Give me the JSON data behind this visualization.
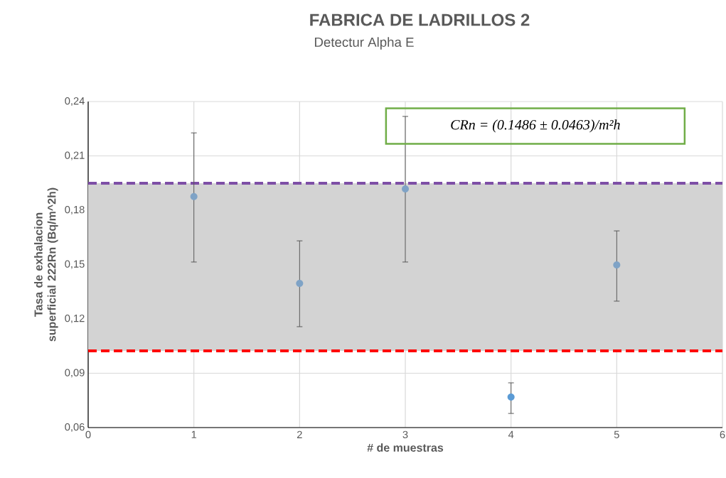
{
  "chart_data": {
    "type": "scatter",
    "title": "FABRICA DE LADRILLOS 2",
    "subtitle": "Detectur Alpha E",
    "xlabel": "# de muestras",
    "ylabel": "Tasa de exhalacion superficial 222Rn (Bq/m^2h)",
    "x": [
      1,
      2,
      3,
      4,
      5
    ],
    "values": [
      0.1875,
      0.1396,
      0.1918,
      0.0769,
      0.1498
    ],
    "colors": [
      "#7fa3c6",
      "#7fa3c6",
      "#7fa3c6",
      "#5b9bd5",
      "#7fa3c6"
    ],
    "errors": [
      [
        0.1514,
        0.2227
      ],
      [
        0.1157,
        0.1631
      ],
      [
        0.1514,
        0.2318
      ],
      [
        0.0678,
        0.0847
      ],
      [
        0.1298,
        0.1686
      ]
    ],
    "xlim": [
      0,
      6
    ],
    "xticks": [
      0,
      1,
      2,
      3,
      4,
      5,
      6
    ],
    "ylim": [
      0.06,
      0.24
    ],
    "yticks": [
      {
        "value": 0.06,
        "label": "0,06"
      },
      {
        "value": 0.09,
        "label": "0,09"
      },
      {
        "value": 0.12,
        "label": "0,12"
      },
      {
        "value": 0.15,
        "label": "0,15"
      },
      {
        "value": 0.18,
        "label": "0,18"
      },
      {
        "value": 0.21,
        "label": "0,21"
      },
      {
        "value": 0.24,
        "label": "0,24"
      }
    ],
    "grid": true,
    "marker": "circle",
    "bands": [
      {
        "axis": "y",
        "from": 0.1023,
        "to": 0.1949,
        "color": "#d3d3d3"
      }
    ],
    "ref_lines": [
      {
        "axis": "y",
        "value": 0.1949,
        "color": "#7e4fa6",
        "line_style": "dashed"
      },
      {
        "axis": "y",
        "value": 0.1023,
        "color": "#ff0000",
        "line_style": "dashed"
      }
    ],
    "annotations": [
      "CRn = (0.1486 ± 0.0463)/m²h"
    ]
  }
}
